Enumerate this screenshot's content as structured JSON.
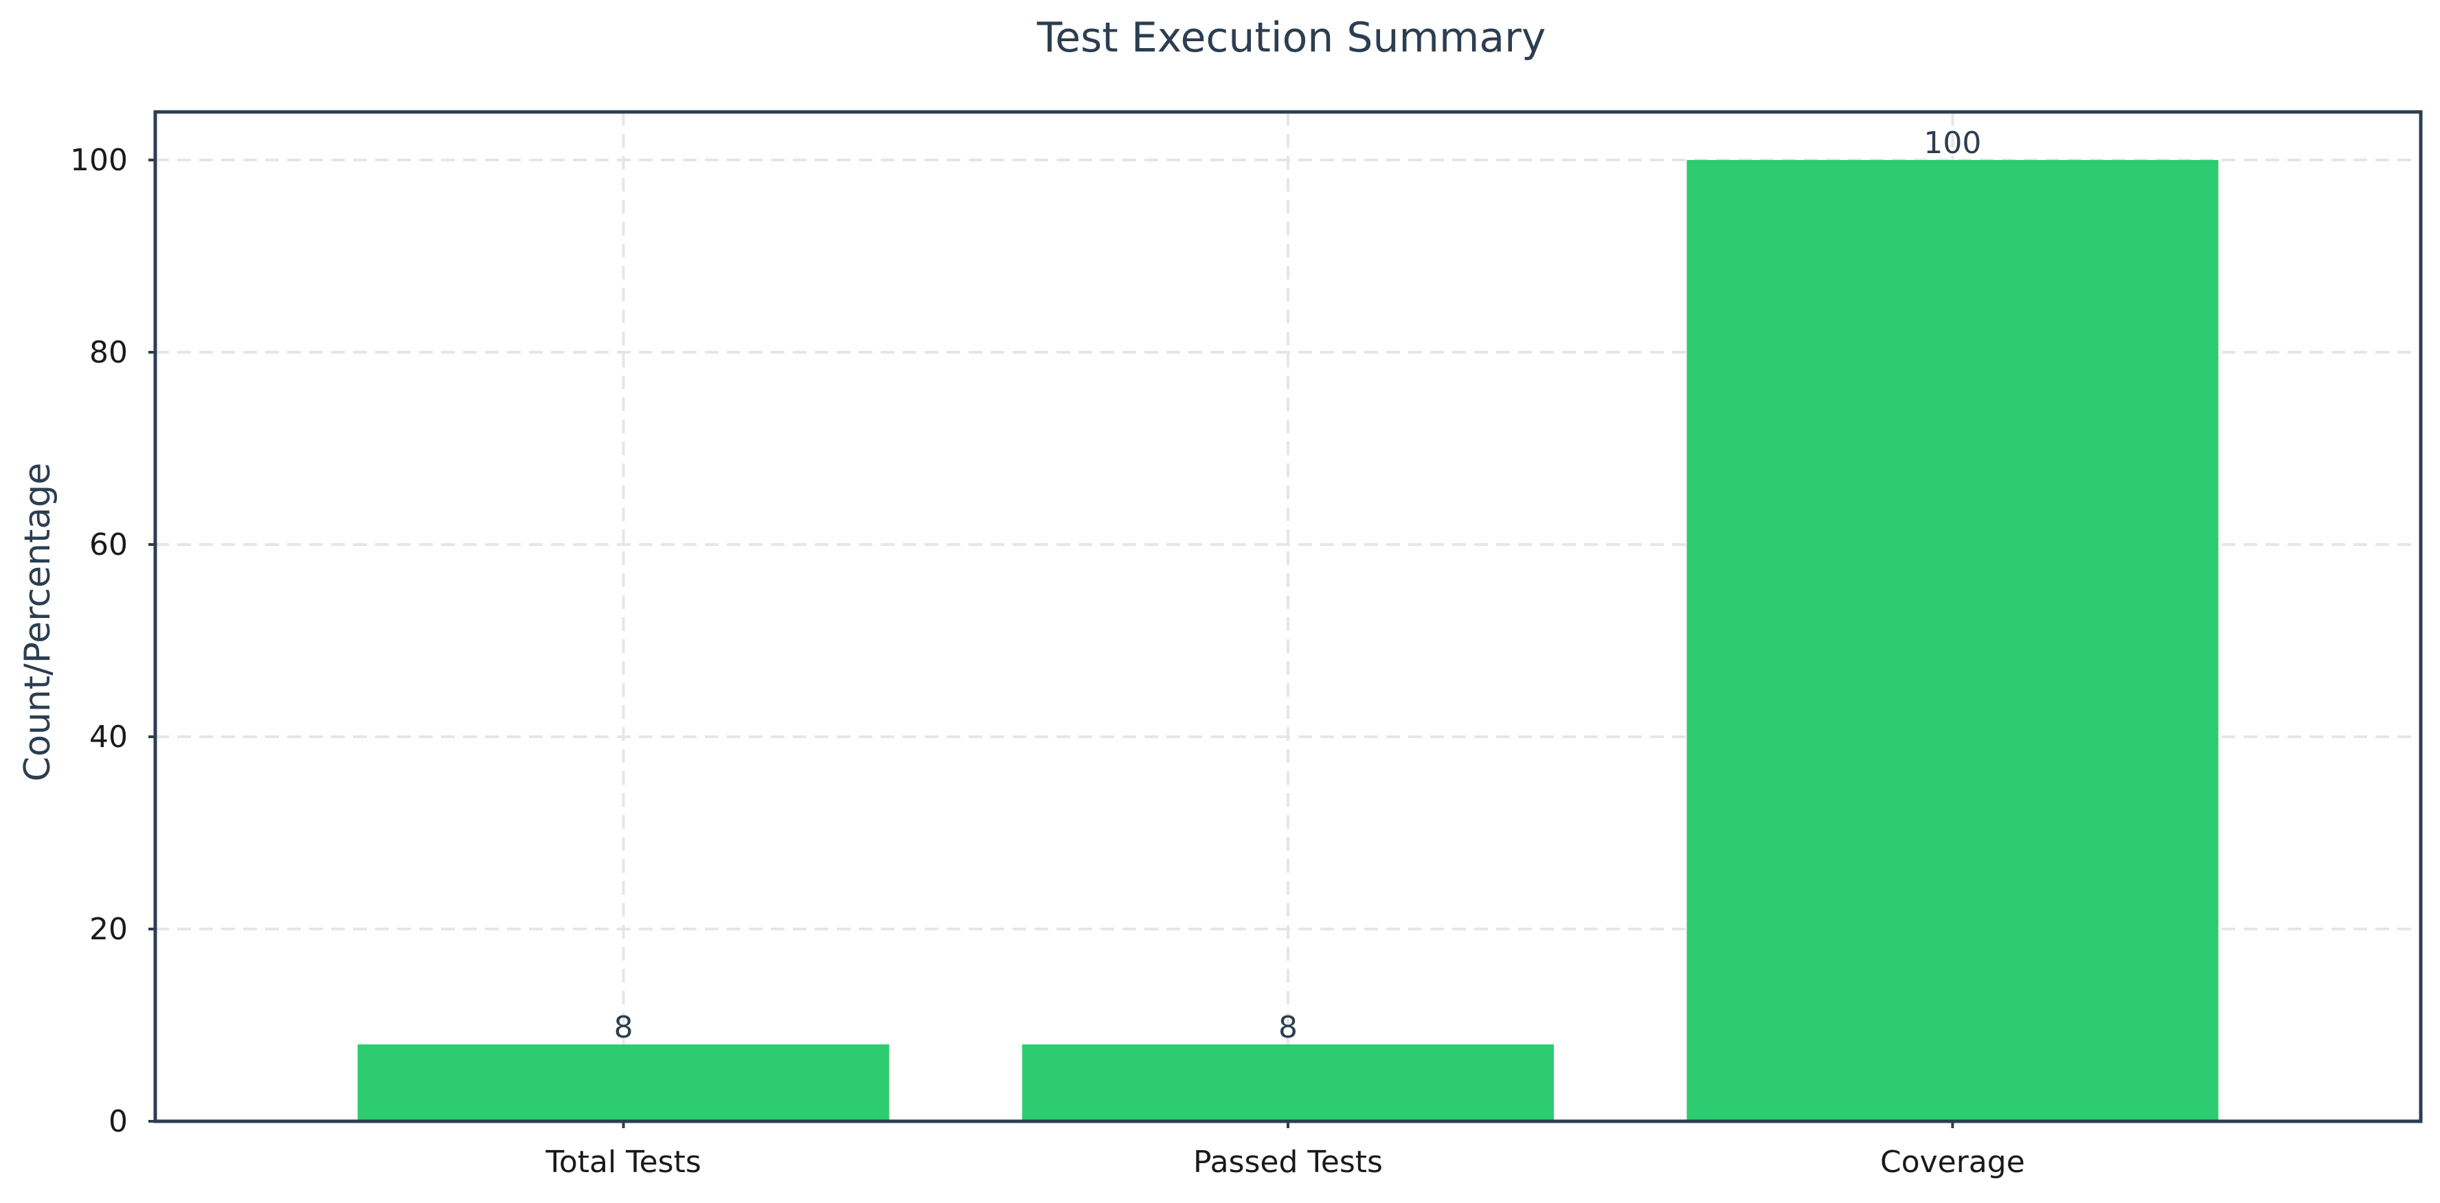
{
  "chart_data": {
    "type": "bar",
    "title": "Test Execution Summary",
    "xlabel": "",
    "ylabel": "Count/Percentage",
    "categories": [
      "Total Tests",
      "Passed Tests",
      "Coverage"
    ],
    "values": [
      8,
      8,
      100
    ],
    "data_labels": [
      "8",
      "8",
      "100"
    ],
    "ylim": [
      0,
      105
    ],
    "yticks": [
      0,
      20,
      40,
      60,
      80,
      100
    ],
    "grid": true,
    "bar_color": "#2ecc71",
    "text_color": "#2c3e50"
  }
}
